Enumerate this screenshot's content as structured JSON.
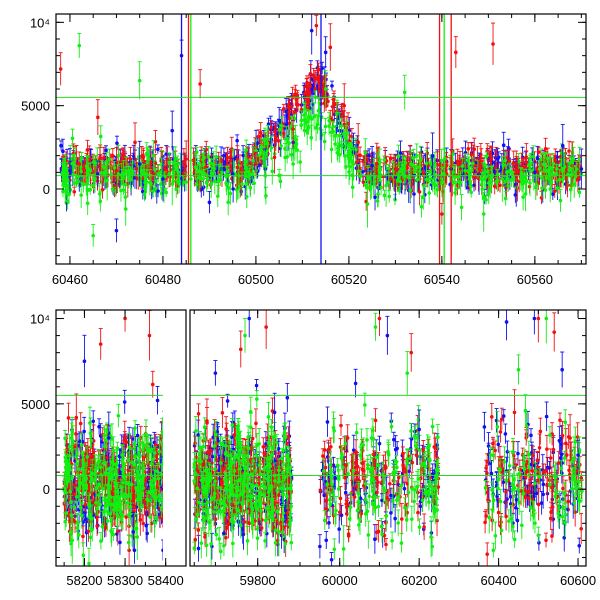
{
  "colors": {
    "blue": "#1010f0",
    "red": "#f01010",
    "green": "#10f010",
    "hline": "#22dd22",
    "frame": "#000000"
  },
  "chart_data": [
    {
      "type": "scatter",
      "title": "",
      "xlabel": "",
      "ylabel": "",
      "xlim": [
        60457,
        60571
      ],
      "ylim": [
        -4500,
        10500
      ],
      "x_ticks": [
        60460,
        60480,
        60500,
        60520,
        60540,
        60560
      ],
      "x_tick_labels": [
        "60460",
        "60480",
        "60500",
        "60520",
        "60540",
        "60560"
      ],
      "y_ticks": [
        0,
        5000,
        10000
      ],
      "y_tick_labels": [
        "0",
        "5000",
        "10⁴"
      ],
      "hlines": [
        5500,
        800
      ],
      "grid": false,
      "legend": "none",
      "series": [
        {
          "color": "#1010f0",
          "points": [
            [
              60460,
              1100
            ],
            [
              60466,
              900
            ],
            [
              60470,
              -2500
            ],
            [
              60475,
              1500
            ],
            [
              60480,
              600
            ],
            [
              60482,
              3500
            ],
            [
              60484,
              8000
            ],
            [
              60490,
              -800
            ],
            [
              60495,
              900
            ],
            [
              60502,
              1200
            ],
            [
              60508,
              2800
            ],
            [
              60512,
              9500
            ],
            [
              60515,
              8200
            ],
            [
              60518,
              3500
            ],
            [
              60521,
              2200
            ],
            [
              60525,
              1400
            ],
            [
              60530,
              700
            ],
            [
              60534,
              -300
            ],
            [
              60538,
              2000
            ],
            [
              60542,
              1200
            ],
            [
              60548,
              900
            ],
            [
              60552,
              1800
            ],
            [
              60556,
              300
            ],
            [
              60560,
              1000
            ],
            [
              60566,
              2600
            ],
            [
              60570,
              1200
            ]
          ]
        },
        {
          "color": "#f01010",
          "points": [
            [
              60458,
              7200
            ],
            [
              60462,
              1500
            ],
            [
              60466,
              4300
            ],
            [
              60470,
              1100
            ],
            [
              60474,
              2800
            ],
            [
              60478,
              900
            ],
            [
              60485,
              1800
            ],
            [
              60488,
              6300
            ],
            [
              60492,
              1000
            ],
            [
              60496,
              1300
            ],
            [
              60500,
              1500
            ],
            [
              60504,
              1900
            ],
            [
              60508,
              3600
            ],
            [
              60511,
              5800
            ],
            [
              60513,
              9800
            ],
            [
              60516,
              8500
            ],
            [
              60519,
              5000
            ],
            [
              60522,
              2800
            ],
            [
              60526,
              1500
            ],
            [
              60530,
              1200
            ],
            [
              60536,
              1000
            ],
            [
              60540,
              -1500
            ],
            [
              60543,
              8200
            ],
            [
              60548,
              1200
            ],
            [
              60551,
              8700
            ],
            [
              60556,
              1100
            ],
            [
              60562,
              900
            ],
            [
              60568,
              1400
            ]
          ]
        },
        {
          "color": "#10f010",
          "points": [
            [
              60459,
              200
            ],
            [
              60462,
              8600
            ],
            [
              60465,
              -2800
            ],
            [
              60468,
              500
            ],
            [
              60472,
              -1200
            ],
            [
              60475,
              6500
            ],
            [
              60478,
              2000
            ],
            [
              60482,
              300
            ],
            [
              60486,
              600
            ],
            [
              60492,
              500
            ],
            [
              60497,
              300
            ],
            [
              60502,
              800
            ],
            [
              60508,
              1500
            ],
            [
              60512,
              4200
            ],
            [
              60515,
              6000
            ],
            [
              60518,
              3200
            ],
            [
              60521,
              1500
            ],
            [
              60524,
              -900
            ],
            [
              60528,
              200
            ],
            [
              60532,
              5800
            ],
            [
              60536,
              -500
            ],
            [
              60540,
              400
            ],
            [
              60545,
              1100
            ],
            [
              60549,
              -1500
            ],
            [
              60553,
              600
            ],
            [
              60558,
              -300
            ],
            [
              60562,
              1500
            ],
            [
              60568,
              900
            ]
          ]
        }
      ]
    },
    {
      "type": "scatter",
      "title": "",
      "xlabel": "",
      "ylabel": "",
      "y_ticks": [
        0,
        5000,
        10000
      ],
      "y_tick_labels": [
        "0",
        "5000",
        "10⁴"
      ],
      "ylim": [
        -4500,
        10500
      ],
      "hlines": [
        5500,
        800
      ],
      "grid": false,
      "legend": "none",
      "segments": [
        {
          "xlim": [
            58130,
            58450
          ],
          "x_ticks": [
            58200,
            58300,
            58400
          ],
          "x_tick_labels": [
            "58200",
            "58300",
            "58400"
          ],
          "data_range": [
            58150,
            58410
          ]
        },
        {
          "xlim": [
            59640,
            59900
          ],
          "x_ticks": [
            59800
          ],
          "x_tick_labels": [
            "59800"
          ],
          "data_range": [
            59650,
            59880
          ]
        },
        {
          "xlim": [
            59900,
            60620
          ],
          "x_ticks": [
            60000,
            60200,
            60400,
            60600
          ],
          "x_tick_labels": [
            "60000",
            "60200",
            "60400",
            "60600"
          ],
          "data_range": [
            59950,
            60610
          ],
          "gap": [
            60250,
            60360
          ]
        }
      ],
      "series": [
        {
          "color": "#1010f0",
          "points": [
            [
              58200,
              7500
            ],
            [
              58260,
              3000
            ],
            [
              58320,
              -2500
            ],
            [
              58380,
              5200
            ],
            [
              59700,
              6800
            ],
            [
              59780,
              10000
            ],
            [
              59840,
              4500
            ],
            [
              60040,
              6200
            ],
            [
              60120,
              9000
            ],
            [
              60200,
              3500
            ],
            [
              60420,
              9800
            ],
            [
              60490,
              10000
            ],
            [
              60560,
              7000
            ],
            [
              60600,
              2000
            ]
          ]
        },
        {
          "color": "#f01010",
          "points": [
            [
              58180,
              4200
            ],
            [
              58240,
              8500
            ],
            [
              58300,
              10000
            ],
            [
              58360,
              9000
            ],
            [
              59680,
              4000
            ],
            [
              59760,
              8200
            ],
            [
              59820,
              9500
            ],
            [
              60020,
              3000
            ],
            [
              60100,
              10000
            ],
            [
              60180,
              8000
            ],
            [
              60440,
              4500
            ],
            [
              60500,
              10000
            ],
            [
              60540,
              9200
            ],
            [
              60580,
              3000
            ]
          ]
        },
        {
          "color": "#10f010",
          "points": [
            [
              58170,
              -3000
            ],
            [
              58250,
              2500
            ],
            [
              58330,
              -2800
            ],
            [
              58400,
              1000
            ],
            [
              59690,
              -3200
            ],
            [
              59770,
              9000
            ],
            [
              59850,
              -2500
            ],
            [
              60010,
              -3500
            ],
            [
              60090,
              9500
            ],
            [
              60170,
              6800
            ],
            [
              60230,
              -2800
            ],
            [
              60450,
              7000
            ],
            [
              60520,
              10000
            ],
            [
              60590,
              1800
            ]
          ]
        }
      ]
    }
  ]
}
